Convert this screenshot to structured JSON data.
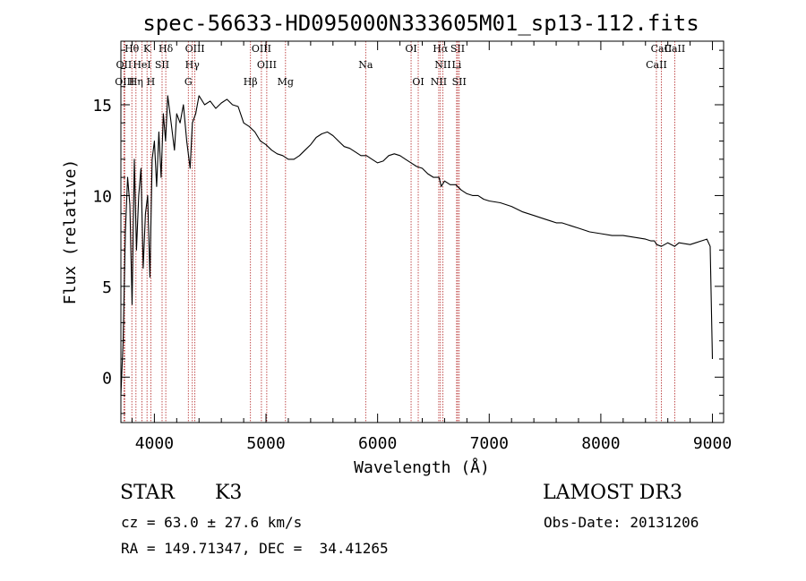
{
  "chart_data": {
    "type": "line",
    "title": "spec-56633-HD095000N333605M01_sp13-112.fits",
    "xlabel": "Wavelength (Å)",
    "ylabel": "Flux (relative)",
    "xlim": [
      3700,
      9100
    ],
    "ylim": [
      -2.5,
      18.5
    ],
    "xticks": [
      4000,
      5000,
      6000,
      7000,
      8000,
      9000
    ],
    "yticks": [
      0,
      5,
      10,
      15
    ],
    "series": [
      {
        "name": "spectrum",
        "x": [
          3700,
          3720,
          3740,
          3760,
          3780,
          3800,
          3820,
          3840,
          3860,
          3880,
          3900,
          3920,
          3940,
          3960,
          3980,
          4000,
          4020,
          4040,
          4060,
          4080,
          4100,
          4120,
          4150,
          4180,
          4200,
          4230,
          4260,
          4290,
          4320,
          4340,
          4370,
          4400,
          4450,
          4500,
          4550,
          4600,
          4650,
          4700,
          4750,
          4800,
          4850,
          4900,
          4950,
          5000,
          5050,
          5100,
          5150,
          5200,
          5250,
          5300,
          5350,
          5400,
          5450,
          5500,
          5550,
          5600,
          5650,
          5700,
          5750,
          5800,
          5850,
          5900,
          5950,
          6000,
          6050,
          6100,
          6150,
          6200,
          6250,
          6300,
          6350,
          6400,
          6450,
          6500,
          6550,
          6570,
          6600,
          6650,
          6700,
          6750,
          6800,
          6850,
          6900,
          6950,
          7000,
          7100,
          7200,
          7300,
          7400,
          7500,
          7550,
          7600,
          7650,
          7700,
          7800,
          7900,
          8000,
          8100,
          8200,
          8300,
          8400,
          8450,
          8480,
          8500,
          8542,
          8600,
          8662,
          8700,
          8800,
          8850,
          8900,
          8950,
          8980,
          9000
        ],
        "y": [
          -1,
          2,
          8,
          11,
          9.5,
          4,
          12,
          7,
          10,
          11.5,
          6,
          9,
          10,
          5.5,
          12,
          13,
          10.5,
          13.5,
          11,
          14.5,
          13,
          15.5,
          14,
          12.5,
          14.5,
          14,
          15,
          13,
          11.5,
          14,
          14.5,
          15.5,
          15,
          15.2,
          14.8,
          15.1,
          15.3,
          15,
          14.9,
          14,
          13.8,
          13.5,
          13,
          12.8,
          12.5,
          12.3,
          12.2,
          12,
          12,
          12.2,
          12.5,
          12.8,
          13.2,
          13.4,
          13.5,
          13.3,
          13,
          12.7,
          12.6,
          12.4,
          12.2,
          12.2,
          12,
          11.8,
          11.9,
          12.2,
          12.3,
          12.2,
          12,
          11.8,
          11.6,
          11.5,
          11.2,
          11,
          11,
          10.5,
          10.8,
          10.6,
          10.6,
          10.3,
          10.1,
          10,
          10,
          9.8,
          9.7,
          9.6,
          9.4,
          9.1,
          8.9,
          8.7,
          8.6,
          8.5,
          8.5,
          8.4,
          8.2,
          8,
          7.9,
          7.8,
          7.8,
          7.7,
          7.6,
          7.5,
          7.5,
          7.3,
          7.2,
          7.4,
          7.2,
          7.4,
          7.3,
          7.4,
          7.5,
          7.6,
          7.2,
          1
        ]
      }
    ],
    "lines": [
      {
        "label": "Hθ",
        "x": 3798
      },
      {
        "label": "K",
        "x": 3934
      },
      {
        "label": "Hδ",
        "x": 4102
      },
      {
        "label": "OIII",
        "x": 4363
      },
      {
        "label": "OIII",
        "x": 4959
      },
      {
        "label": "OI",
        "x": 6300
      },
      {
        "label": "Hα",
        "x": 6563
      },
      {
        "label": "SII",
        "x": 6717
      },
      {
        "label": "CaII",
        "x": 8542
      },
      {
        "label": "OII",
        "x": 3727
      },
      {
        "label": "HeI",
        "x": 3889
      },
      {
        "label": "SII",
        "x": 4069
      },
      {
        "label": "Hγ",
        "x": 4340
      },
      {
        "label": "OIII",
        "x": 5007
      },
      {
        "label": "Na",
        "x": 5893
      },
      {
        "label": "NII",
        "x": 6584
      },
      {
        "label": "Li",
        "x": 6708
      },
      {
        "label": "CaII",
        "x": 8498
      },
      {
        "label": "OIII",
        "x": 3734
      },
      {
        "label": "Hη",
        "x": 3835
      },
      {
        "label": "H",
        "x": 3968
      },
      {
        "label": "G",
        "x": 4304
      },
      {
        "label": "Hβ",
        "x": 4861
      },
      {
        "label": "Mg",
        "x": 5175
      },
      {
        "label": "OI",
        "x": 6364
      },
      {
        "label": "NII",
        "x": 6548
      },
      {
        "label": "SII",
        "x": 6731
      },
      {
        "label": "CaII",
        "x": 8662
      }
    ]
  },
  "info": {
    "object_type": "STAR",
    "subclass": "K3",
    "survey": "LAMOST DR3",
    "cz": "cz = 63.0 ± 27.6 km/s",
    "obs_date": "Obs-Date: 20131206",
    "radec": "RA = 149.71347, DEC =  34.41265"
  },
  "colors": {
    "line_marker": "#b22222",
    "spectrum": "#000000"
  }
}
